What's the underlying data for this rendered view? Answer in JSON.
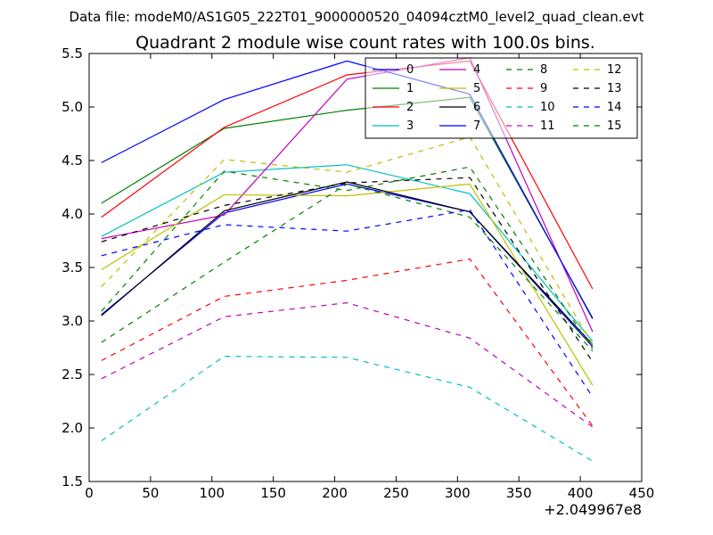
{
  "suptitle": "Data file: modeM0/AS1G05_222T01_9000000520_04094cztM0_level2_quad_clean.evt",
  "chart_data": {
    "type": "line",
    "title": "Quadrant 2 module wise count rates with 100.0s bins.",
    "xlabel": "",
    "ylabel": "",
    "x_offset_label": "+2.049967e8",
    "xlim": [
      0,
      450
    ],
    "ylim": [
      1.5,
      5.5
    ],
    "xticks": [
      0,
      50,
      100,
      150,
      200,
      250,
      300,
      350,
      400,
      450
    ],
    "yticks": [
      1.5,
      2.0,
      2.5,
      3.0,
      3.5,
      4.0,
      4.5,
      5.0,
      5.5
    ],
    "x": [
      10,
      110,
      210,
      310,
      410
    ],
    "legend_position": "top-right",
    "series": [
      {
        "name": "0",
        "color": "#0000ff",
        "dash": "solid",
        "values": [
          3.06,
          4.01,
          4.28,
          4.02,
          2.76
        ]
      },
      {
        "name": "1",
        "color": "#008000",
        "dash": "solid",
        "values": [
          4.1,
          4.8,
          4.97,
          5.09,
          3.03
        ]
      },
      {
        "name": "2",
        "color": "#ff0000",
        "dash": "solid",
        "values": [
          3.97,
          4.81,
          5.3,
          5.43,
          3.3
        ]
      },
      {
        "name": "3",
        "color": "#00bfbf",
        "dash": "solid",
        "values": [
          3.79,
          4.39,
          4.46,
          4.19,
          2.81
        ]
      },
      {
        "name": "4",
        "color": "#bf00bf",
        "dash": "solid",
        "values": [
          3.77,
          3.99,
          5.26,
          5.46,
          2.9
        ]
      },
      {
        "name": "5",
        "color": "#bfbf00",
        "dash": "solid",
        "values": [
          3.48,
          4.18,
          4.17,
          4.28,
          2.4
        ]
      },
      {
        "name": "6",
        "color": "#000000",
        "dash": "solid",
        "values": [
          3.05,
          4.03,
          4.3,
          4.02,
          2.78
        ]
      },
      {
        "name": "7",
        "color": "#0000ff",
        "dash": "solid",
        "values": [
          4.48,
          5.07,
          5.43,
          5.12,
          3.02
        ]
      },
      {
        "name": "8",
        "color": "#008000",
        "dash": "dashed",
        "values": [
          2.8,
          3.55,
          4.28,
          3.97,
          2.72
        ]
      },
      {
        "name": "9",
        "color": "#ff0000",
        "dash": "dashed",
        "values": [
          2.63,
          3.23,
          3.38,
          3.58,
          2.02
        ]
      },
      {
        "name": "10",
        "color": "#00bfbf",
        "dash": "dashed",
        "values": [
          1.88,
          2.67,
          2.66,
          2.38,
          1.69
        ]
      },
      {
        "name": "11",
        "color": "#bf00bf",
        "dash": "dashed",
        "values": [
          2.46,
          3.04,
          3.17,
          2.84,
          2.01
        ]
      },
      {
        "name": "12",
        "color": "#bfbf00",
        "dash": "dashed",
        "values": [
          3.32,
          4.51,
          4.39,
          4.72,
          2.78
        ]
      },
      {
        "name": "13",
        "color": "#000000",
        "dash": "dashed",
        "values": [
          3.74,
          4.08,
          4.29,
          4.34,
          2.62
        ]
      },
      {
        "name": "14",
        "color": "#0000ff",
        "dash": "dashed",
        "values": [
          3.61,
          3.9,
          3.84,
          4.04,
          2.29
        ]
      },
      {
        "name": "15",
        "color": "#008000",
        "dash": "dashed",
        "values": [
          3.09,
          4.4,
          4.22,
          4.44,
          2.74
        ]
      }
    ]
  }
}
